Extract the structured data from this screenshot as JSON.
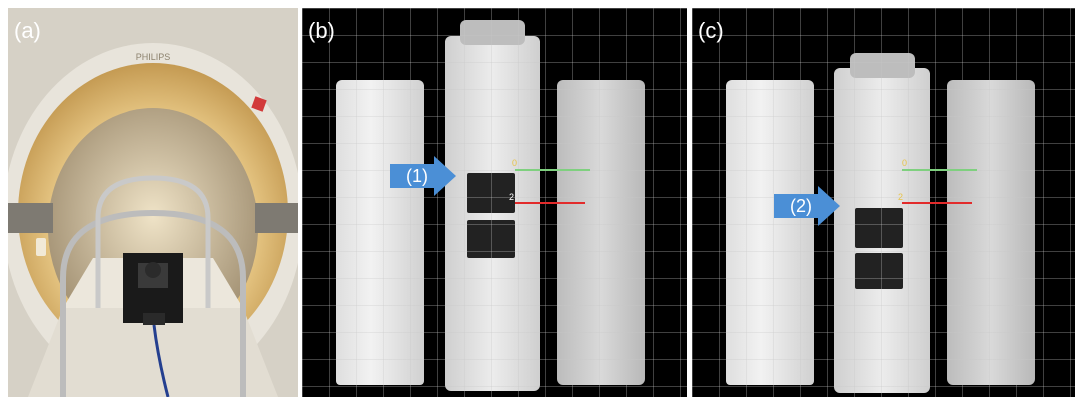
{
  "panels": {
    "a": {
      "label": "(a)"
    },
    "b": {
      "label": "(b)",
      "arrow_label": "(1)",
      "marker_green": "0",
      "marker_red": "2"
    },
    "c": {
      "label": "(c)",
      "arrow_label": "(2)",
      "marker_green": "0",
      "marker_red": "2"
    }
  },
  "scanner": {
    "brand": "PHILIPS"
  },
  "colors": {
    "arrow": "#4b8fd6",
    "line_green": "#7fd07f",
    "line_red": "#e22b2b",
    "bore_glow": "#f3d493"
  }
}
